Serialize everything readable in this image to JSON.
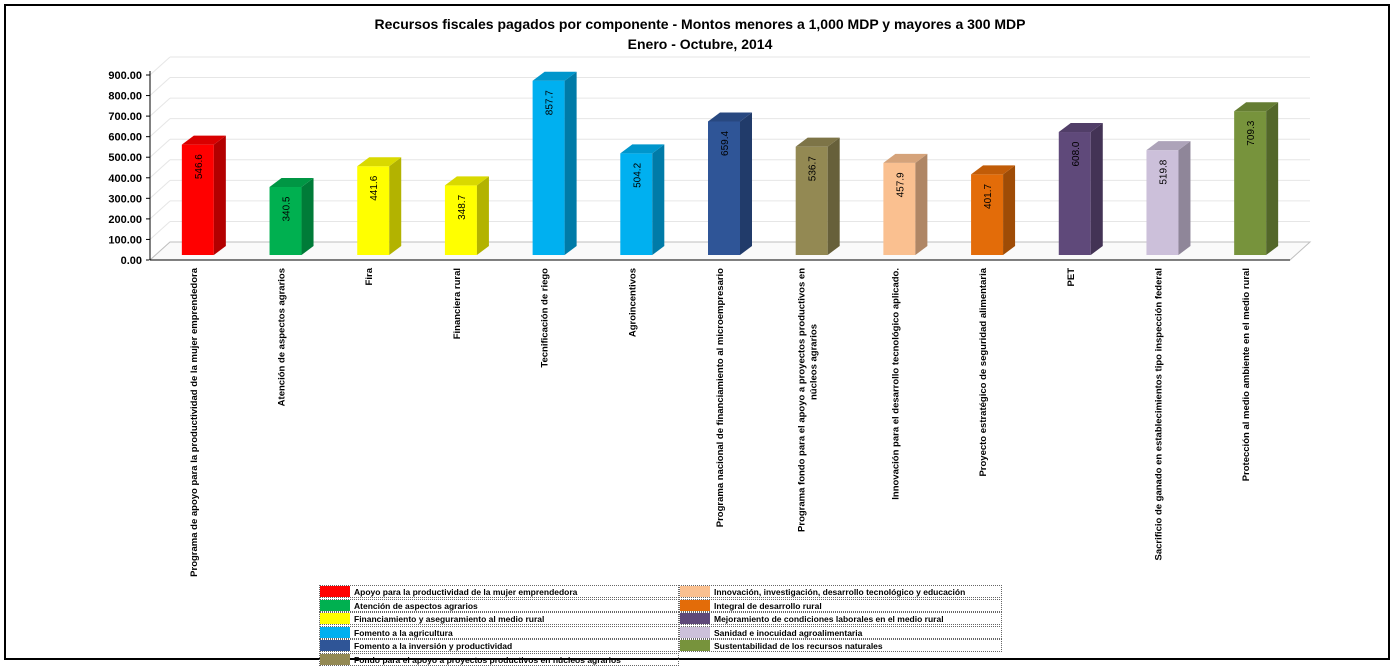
{
  "chart_data": {
    "type": "bar",
    "title": "Recursos fiscales pagados por componente - Montos menores a 1,000 MDP y mayores a 300 MDP",
    "subtitle": "Enero - Octubre, 2014",
    "ylim": [
      0,
      900
    ],
    "yticks": [
      "900.00",
      "800.00",
      "700.00",
      "600.00",
      "500.00",
      "400.00",
      "300.00",
      "200.00",
      "100.00",
      "0.00"
    ],
    "grid": true,
    "legend_position": "bottom",
    "categories": [
      "Programa de apoyo para la productividad de la mujer emprendedora",
      "Atención de aspectos agrarios",
      "Fira",
      "Financiera rural",
      "Tecnificación de riego",
      "Agroincentivos",
      "Programa nacional de financiamiento al microempresario",
      "Programa fondo para el apoyo a proyectos productivos en núcleos agrarios",
      "Innovación para el desarrollo tecnológico aplicado.",
      "Proyecto estratégico de seguridad alimentaria",
      "PET",
      "Sacrificio de ganado en establecimientos tipo inspección federal",
      "Protección al medio ambiente en el medio rural"
    ],
    "values": [
      546.6,
      340.5,
      441.6,
      348.7,
      857.7,
      504.2,
      659.4,
      536.7,
      457.9,
      401.7,
      608.0,
      519.8,
      709.3
    ],
    "value_labels": [
      "546.6",
      "340.5",
      "441.6",
      "348.7",
      "857.7",
      "504.2",
      "659.4",
      "536.7",
      "457.9",
      "401.7",
      "608.0",
      "519.8",
      "709.3"
    ],
    "bar_colors": [
      "#ff0000",
      "#00b050",
      "#ffff00",
      "#ffff00",
      "#00b0f0",
      "#00b0f0",
      "#2f5597",
      "#938953",
      "#fac090",
      "#e36c09",
      "#5f497a",
      "#ccc0da",
      "#77933c"
    ],
    "legend": [
      {
        "label": "Apoyo para la productividad de la mujer emprendedora",
        "color": "#ff0000"
      },
      {
        "label": "Atención de aspectos agrarios",
        "color": "#00b050"
      },
      {
        "label": "Financiamiento y aseguramiento al medio rural",
        "color": "#ffff00"
      },
      {
        "label": "Fomento a la agricultura",
        "color": "#00b0f0"
      },
      {
        "label": "Fomento a la inversión y productividad",
        "color": "#2f5597"
      },
      {
        "label": "Fondo para el apoyo a proyectos productivos en núcleos agrarios",
        "color": "#938953"
      },
      {
        "label": "Innovación, investigación, desarrollo tecnológico y educación",
        "color": "#fac090"
      },
      {
        "label": "Integral de desarrollo rural",
        "color": "#e36c09"
      },
      {
        "label": "Mejoramiento de condiciones laborales en el medio rural",
        "color": "#5f497a"
      },
      {
        "label": "Sanidad e inocuidad agroalimentaria",
        "color": "#ccc0da"
      },
      {
        "label": "Sustentabilidad de los recursos naturales",
        "color": "#77933c"
      }
    ]
  }
}
